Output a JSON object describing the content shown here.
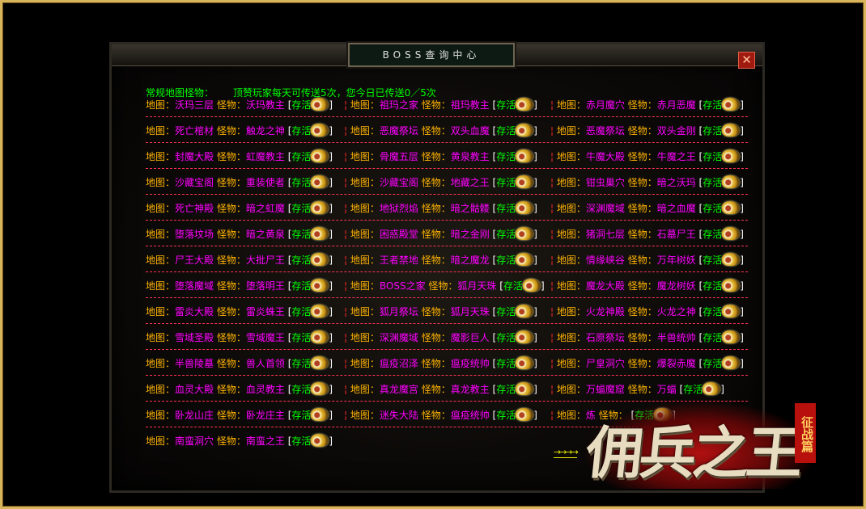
{
  "window": {
    "title": "BOSS查询中心",
    "close_icon": "close-icon"
  },
  "header": {
    "label": "常规地图怪物：",
    "notice": "顶赞玩家每天可传送5次，您今日已传送0／5次"
  },
  "labels": {
    "map": "地图：",
    "monster": "怪物：",
    "open_bracket": "[",
    "status": "存活",
    "close_bracket": "]",
    "separator": "¦"
  },
  "colors": {
    "label": "#ffb400",
    "name": "#ff00ff",
    "status": "#00ff00",
    "divider": "#ff3355",
    "frame": "#d8b45a"
  },
  "status_icon": "gold-ingot-icon",
  "rows": [
    [
      [
        "沃玛三层",
        "沃玛教主"
      ],
      [
        "祖玛之家",
        "祖玛教主"
      ],
      [
        "赤月魔穴",
        "赤月恶魔"
      ]
    ],
    [
      [
        "死亡棺材",
        "触龙之神"
      ],
      [
        "恶魔祭坛",
        "双头血魔"
      ],
      [
        "恶魔祭坛",
        "双头金刚"
      ]
    ],
    [
      [
        "封魔大殿",
        "虹魔教主"
      ],
      [
        "骨魔五层",
        "黄泉教主"
      ],
      [
        "牛魔大殿",
        "牛魔之王"
      ]
    ],
    [
      [
        "沙藏宝阁",
        "重装使者"
      ],
      [
        "沙藏宝阁",
        "地藏之王"
      ],
      [
        "钳虫巢穴",
        "暗之沃玛"
      ]
    ],
    [
      [
        "死亡神殿",
        "暗之虹魔"
      ],
      [
        "地狱烈焰",
        "暗之骷髅"
      ],
      [
        "深渊魔域",
        "暗之血魔"
      ]
    ],
    [
      [
        "堕落坟场",
        "暗之黄泉"
      ],
      [
        "困惑殿堂",
        "暗之金刚"
      ],
      [
        "猪洞七层",
        "石墓尸王"
      ]
    ],
    [
      [
        "尸王大殿",
        "大批尸王"
      ],
      [
        "王者禁地",
        "暗之魔龙"
      ],
      [
        "情缘峡谷",
        "万年树妖"
      ]
    ],
    [
      [
        "堕落魔域",
        "堕落明王"
      ],
      [
        "BOSS之家",
        "狐月天珠"
      ],
      [
        "魔龙大殿",
        "魔龙树妖"
      ]
    ],
    [
      [
        "雷炎大殿",
        "雷炎蛛王"
      ],
      [
        "狐月祭坛",
        "狐月天珠"
      ],
      [
        "火龙神殿",
        "火龙之神"
      ]
    ],
    [
      [
        "雪域圣殿",
        "雪域魔王"
      ],
      [
        "深渊魔域",
        "魔影巨人"
      ],
      [
        "石原祭坛",
        "半兽统帅"
      ]
    ],
    [
      [
        "半兽陵墓",
        "兽人首领"
      ],
      [
        "瘟疫沼泽",
        "瘟疫统帅"
      ],
      [
        "尸皇洞穴",
        "爆裂赤魔"
      ]
    ],
    [
      [
        "血灵大殿",
        "血灵教主"
      ],
      [
        "真龙魔宫",
        "真龙教主"
      ],
      [
        "万蝠魔窟",
        "万蝠"
      ]
    ],
    [
      [
        "卧龙山庄",
        "卧龙庄主"
      ],
      [
        "迷失大陆",
        "瘟疫统帅"
      ],
      [
        "炼",
        ""
      ]
    ],
    [
      [
        "南蛮洞穴",
        "南蛮之王"
      ]
    ]
  ],
  "footer": {
    "arrows": "→→→→"
  },
  "logo": {
    "title": "佣兵之王",
    "subtitle": "征战篇"
  }
}
